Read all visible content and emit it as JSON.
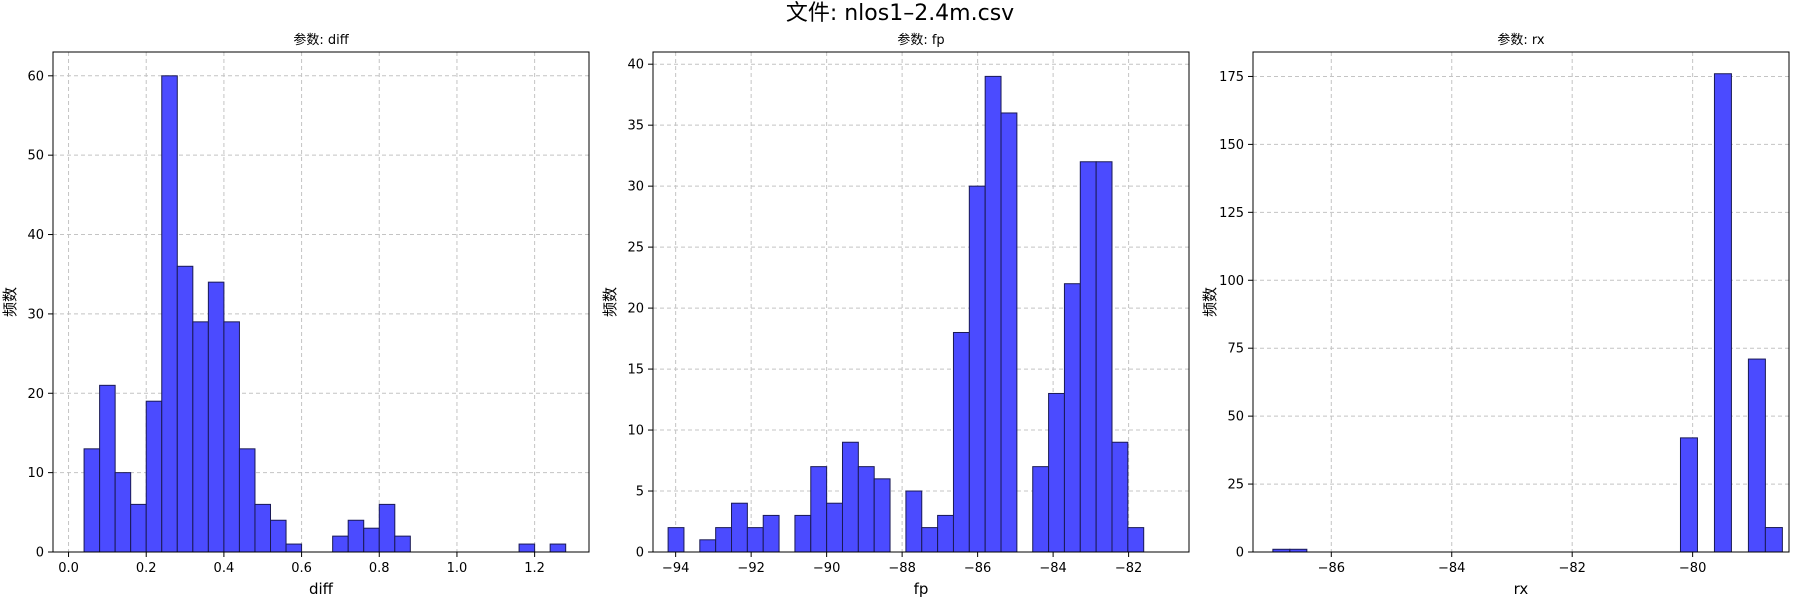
{
  "figure": {
    "suptitle": "文件: nlos1–2.4m.csv",
    "colors": {
      "bar_fill": "#4b4bff",
      "bar_edge": "#1a1a55",
      "grid": "#c4c4c4",
      "axes": "#000000"
    }
  },
  "chart_data": [
    {
      "type": "bar",
      "title": "参数: diff",
      "xlabel": "diff",
      "ylabel": "频数",
      "xlim": [
        -0.04,
        1.34
      ],
      "ylim": [
        0,
        63
      ],
      "xticks": [
        0.0,
        0.2,
        0.4,
        0.6,
        0.8,
        1.0,
        1.2
      ],
      "xtick_labels": [
        "0.0",
        "0.2",
        "0.4",
        "0.6",
        "0.8",
        "1.0",
        "1.2"
      ],
      "yticks": [
        0,
        10,
        20,
        30,
        40,
        50,
        60
      ],
      "ytick_labels": [
        "0",
        "10",
        "20",
        "30",
        "40",
        "50",
        "60"
      ],
      "grid": true,
      "bin_start": 0.04,
      "bin_width": 0.04,
      "values": [
        13,
        21,
        10,
        6,
        19,
        60,
        36,
        29,
        34,
        29,
        13,
        6,
        4,
        1,
        0,
        0,
        2,
        4,
        3,
        6,
        2,
        0,
        0,
        0,
        0,
        0,
        0,
        0,
        1,
        0,
        1
      ]
    },
    {
      "type": "bar",
      "title": "参数: fp",
      "xlabel": "fp",
      "ylabel": "频数",
      "xlim": [
        -94.6,
        -80.4
      ],
      "ylim": [
        0,
        41
      ],
      "xticks": [
        -94,
        -92,
        -90,
        -88,
        -86,
        -84,
        -82
      ],
      "xtick_labels": [
        "−94",
        "−92",
        "−90",
        "−88",
        "−86",
        "−84",
        "−82"
      ],
      "yticks": [
        0,
        5,
        10,
        15,
        20,
        25,
        30,
        35,
        40
      ],
      "ytick_labels": [
        "0",
        "5",
        "10",
        "15",
        "20",
        "25",
        "30",
        "35",
        "40"
      ],
      "grid": true,
      "bin_start": -94.2,
      "bin_width": 0.42,
      "values": [
        2,
        0,
        1,
        2,
        4,
        2,
        3,
        0,
        3,
        7,
        4,
        9,
        7,
        6,
        0,
        5,
        2,
        3,
        18,
        30,
        39,
        36,
        0,
        7,
        13,
        22,
        32,
        32,
        9,
        2
      ]
    },
    {
      "type": "bar",
      "title": "参数: rx",
      "xlabel": "rx",
      "ylabel": "频数",
      "xlim": [
        -87.3,
        -78.4
      ],
      "ylim": [
        0,
        184
      ],
      "xticks": [
        -86,
        -84,
        -82,
        -80
      ],
      "xtick_labels": [
        "−86",
        "−84",
        "−82",
        "−80"
      ],
      "yticks": [
        0,
        25,
        50,
        75,
        100,
        125,
        150,
        175
      ],
      "ytick_labels": [
        "0",
        "25",
        "50",
        "75",
        "100",
        "125",
        "150",
        "175"
      ],
      "grid": true,
      "bin_start": -86.97,
      "bin_width": 0.282,
      "values": [
        1,
        1,
        0,
        0,
        0,
        0,
        0,
        0,
        0,
        0,
        0,
        0,
        0,
        0,
        0,
        0,
        0,
        0,
        0,
        0,
        0,
        0,
        0,
        0,
        42,
        0,
        176,
        0,
        71,
        9
      ]
    }
  ]
}
